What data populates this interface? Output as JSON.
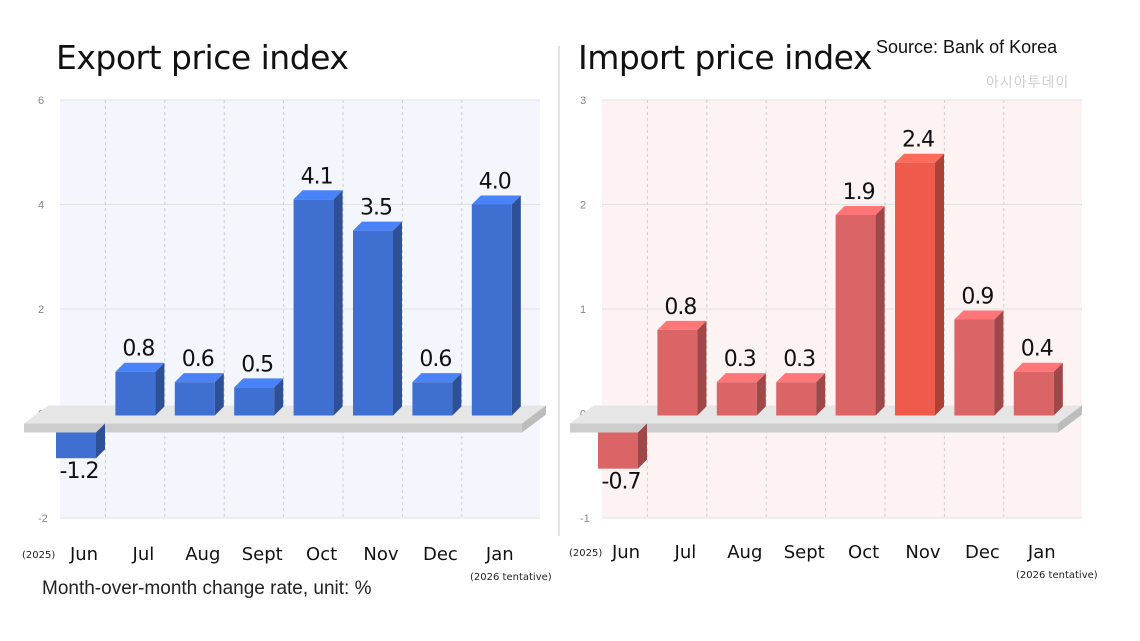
{
  "source": "Source: Bank of Korea",
  "watermark": "아시아투데이",
  "footnote": "Month-over-month change rate, unit: %",
  "chart_data": [
    {
      "type": "bar",
      "title": "Export price index",
      "categories": [
        "Jun",
        "Jul",
        "Aug",
        "Sept",
        "Oct",
        "Nov",
        "Dec",
        "Jan"
      ],
      "first_category_note": "(2025)",
      "last_category_note": "(2026 tentative)",
      "values": [
        -1.2,
        0.8,
        0.6,
        0.5,
        4.1,
        3.5,
        0.6,
        4.0
      ],
      "value_labels": [
        "-1.2",
        "0.8",
        "0.6",
        "0.5",
        "4.1",
        "3.5",
        "0.6",
        "4.0"
      ],
      "yticks": [
        -2,
        0,
        2,
        4,
        6
      ],
      "ylim": [
        -2,
        6
      ],
      "color": "#3f6fd1",
      "panel_color": "#f3f6fd"
    },
    {
      "type": "bar",
      "title": "Import price index",
      "categories": [
        "Jun",
        "Jul",
        "Aug",
        "Sept",
        "Oct",
        "Nov",
        "Dec",
        "Jan"
      ],
      "first_category_note": "(2025)",
      "last_category_note": "(2026 tentative)",
      "values": [
        -0.7,
        0.8,
        0.3,
        0.3,
        1.9,
        2.4,
        0.9,
        0.4
      ],
      "value_labels": [
        "-0.7",
        "0.8",
        "0.3",
        "0.3",
        "1.9",
        "2.4",
        "0.9",
        "0.4"
      ],
      "yticks": [
        -1,
        0,
        1,
        2,
        3
      ],
      "ylim": [
        -1,
        3
      ],
      "color": "#db6466",
      "highlight_color": "#ee5a4c",
      "panel_color": "#fdf3f3"
    }
  ]
}
